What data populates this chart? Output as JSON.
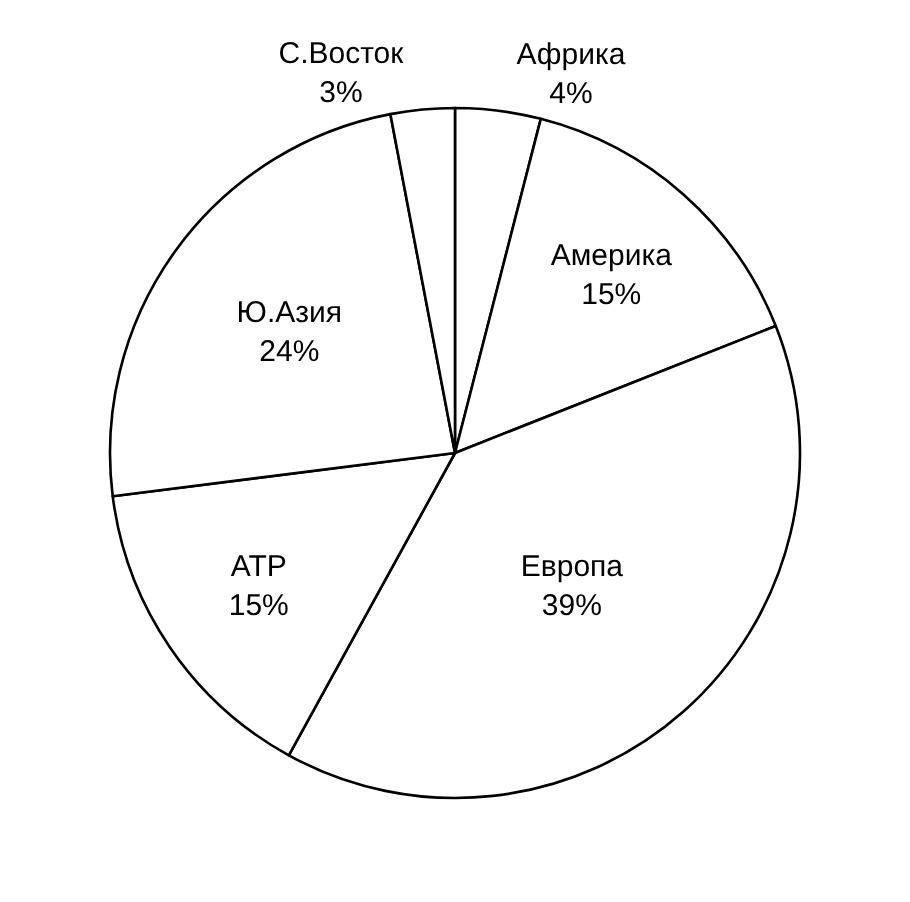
{
  "chart_data": {
    "type": "pie",
    "categories": [
      "Африка",
      "Америка",
      "Европа",
      "АТР",
      "Ю.Азия",
      "С.Восток"
    ],
    "values": [
      4,
      15,
      39,
      15,
      24,
      3
    ],
    "value_labels": [
      "4%",
      "15%",
      "39%",
      "15%",
      "24%",
      "3%"
    ],
    "colors": [
      "#ffffff",
      "#ffffff",
      "#ffffff",
      "#ffffff",
      "#ffffff",
      "#ffffff"
    ],
    "legend": false
  }
}
